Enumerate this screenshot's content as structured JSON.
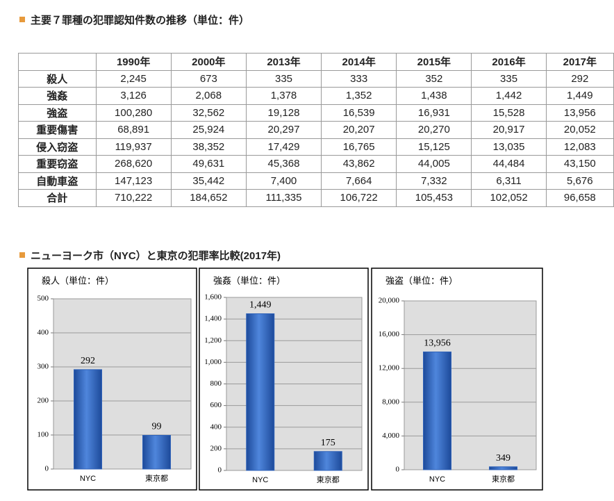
{
  "heading1": "主要７罪種の犯罪認知件数の推移（単位：件）",
  "table": {
    "header": [
      "1990年",
      "2000年",
      "2013年",
      "2014年",
      "2015年",
      "2016年",
      "2017年"
    ],
    "rows": [
      [
        "殺人",
        "2,245",
        "673",
        "335",
        "333",
        "352",
        "335",
        "292"
      ],
      [
        "強姦",
        "3,126",
        "2,068",
        "1,378",
        "1,352",
        "1,438",
        "1,442",
        "1,449"
      ],
      [
        "強盗",
        "100,280",
        "32,562",
        "19,128",
        "16,539",
        "16,931",
        "15,528",
        "13,956"
      ],
      [
        "重要傷害",
        "68,891",
        "25,924",
        "20,297",
        "20,207",
        "20,270",
        "20,917",
        "20,052"
      ],
      [
        "侵入窃盗",
        "119,937",
        "38,352",
        "17,429",
        "16,765",
        "15,125",
        "13,035",
        "12,083"
      ],
      [
        "重要窃盗",
        "268,620",
        "49,631",
        "45,368",
        "43,862",
        "44,005",
        "44,484",
        "43,150"
      ],
      [
        "自動車盗",
        "147,123",
        "35,442",
        "7,400",
        "7,664",
        "7,332",
        "6,311",
        "5,676"
      ],
      [
        "合計",
        "710,222",
        "184,652",
        "111,335",
        "106,722",
        "105,453",
        "102,052",
        "96,658"
      ]
    ]
  },
  "heading2": "ニューヨーク市（NYC）と東京の犯罪率比較(2017年)",
  "chart_data": [
    {
      "type": "bar",
      "title": "殺人（単位：件）",
      "categories": [
        "NYC",
        "東京都"
      ],
      "values": [
        292,
        99
      ],
      "ylim": [
        0,
        500
      ],
      "yticks": [
        0,
        100,
        200,
        300,
        400,
        500
      ],
      "color": "#2f62b8",
      "grid": true
    },
    {
      "type": "bar",
      "title": "強姦（単位：件）",
      "categories": [
        "NYC",
        "東京都"
      ],
      "values": [
        1449,
        175
      ],
      "value_labels": [
        "1,449",
        "175"
      ],
      "ylim": [
        0,
        1600
      ],
      "yticks": [
        0,
        200,
        400,
        600,
        800,
        {
          "value": 1000,
          "label": "1,000"
        },
        {
          "value": 1200,
          "label": "1,200"
        },
        {
          "value": 1400,
          "label": "1,400"
        },
        {
          "value": 1600,
          "label": "1,600"
        }
      ],
      "color": "#2f62b8",
      "grid": true
    },
    {
      "type": "bar",
      "title": "強盗（単位：件）",
      "categories": [
        "NYC",
        "東京都"
      ],
      "values": [
        13956,
        349
      ],
      "value_labels": [
        "13,956",
        "349"
      ],
      "ylim": [
        0,
        20000
      ],
      "yticks": [
        0,
        {
          "value": 4000,
          "label": "4,000"
        },
        {
          "value": 8000,
          "label": "8,000"
        },
        {
          "value": 12000,
          "label": "12,000"
        },
        {
          "value": 16000,
          "label": "16,000"
        },
        {
          "value": 20000,
          "label": "20,000"
        }
      ],
      "color": "#2f62b8",
      "grid": true
    }
  ]
}
